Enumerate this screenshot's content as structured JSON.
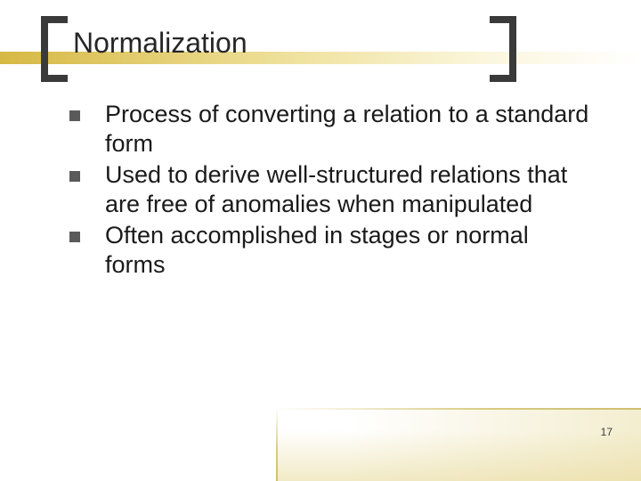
{
  "title": "Normalization",
  "bullets": [
    "Process of converting a relation to a standard form",
    "Used to derive well-structured relations that are free of anomalies when manipulated",
    "Often accomplished  in stages or normal forms"
  ],
  "page_number": "17",
  "colors": {
    "bracket": "#3a3a3a",
    "stripe_start": "#d6b844",
    "stripe_end": "#ffffff",
    "bullet_marker": "#5a5a5a",
    "text": "#1a1a1a",
    "corner_accent": "#d8ca80",
    "background": "#ffffff"
  },
  "typography": {
    "title_fontsize": 32,
    "body_fontsize": 27,
    "pagenum_fontsize": 12,
    "font_family": "Arial"
  },
  "layout": {
    "slide_width": 720,
    "slide_height": 540
  }
}
